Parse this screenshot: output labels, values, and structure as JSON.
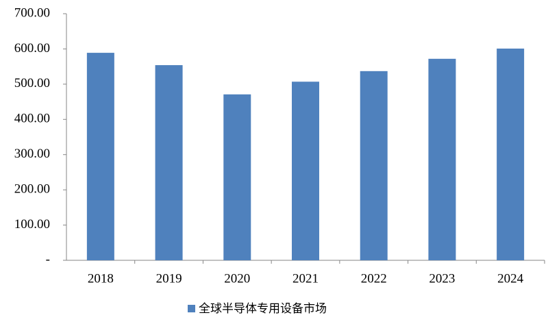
{
  "chart_data": {
    "type": "bar",
    "categories": [
      "2018",
      "2019",
      "2020",
      "2021",
      "2022",
      "2023",
      "2024"
    ],
    "series": [
      {
        "name": "全球半导体专用设备市场",
        "color": "#4f81bd",
        "values": [
          589,
          554,
          471,
          507,
          537,
          572,
          601
        ]
      }
    ],
    "ylim": [
      0,
      700
    ],
    "yticks": [
      {
        "value": 0,
        "label": "-"
      },
      {
        "value": 100,
        "label": "100.00"
      },
      {
        "value": 200,
        "label": "200.00"
      },
      {
        "value": 300,
        "label": "300.00"
      },
      {
        "value": 400,
        "label": "400.00"
      },
      {
        "value": 500,
        "label": "500.00"
      },
      {
        "value": 600,
        "label": "600.00"
      },
      {
        "value": 700,
        "label": "700.00"
      }
    ],
    "grid": false,
    "legend": "bottom"
  }
}
